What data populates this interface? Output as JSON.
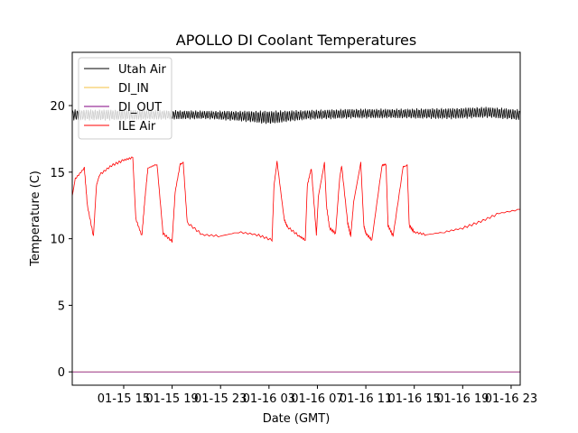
{
  "chart_data": {
    "type": "line",
    "title": "APOLLO DI Coolant Temperatures",
    "xlabel": "Date (GMT)",
    "ylabel": "Temperature (C)",
    "xlim": [
      "2024-01-15T10:45",
      "2024-01-16T23:45"
    ],
    "ylim": [
      -1,
      24
    ],
    "x_ticks": [
      {
        "label": "01-15 15",
        "t": "2024-01-15T15:00"
      },
      {
        "label": "01-15 19",
        "t": "2024-01-15T19:00"
      },
      {
        "label": "01-15 23",
        "t": "2024-01-15T23:00"
      },
      {
        "label": "01-16 03",
        "t": "2024-01-16T03:00"
      },
      {
        "label": "01-16 07",
        "t": "2024-01-16T07:00"
      },
      {
        "label": "01-16 11",
        "t": "2024-01-16T11:00"
      },
      {
        "label": "01-16 15",
        "t": "2024-01-16T15:00"
      },
      {
        "label": "01-16 19",
        "t": "2024-01-16T19:00"
      },
      {
        "label": "01-16 23",
        "t": "2024-01-16T23:00"
      }
    ],
    "y_ticks": [
      0,
      5,
      10,
      15,
      20
    ],
    "grid": false,
    "legend": "top-left",
    "series": [
      {
        "name": "Utah Air",
        "color": "#000000",
        "style": "oscillating",
        "x": [
          "2024-01-15T10:45",
          "2024-01-15T14:00",
          "2024-01-15T18:00",
          "2024-01-15T22:00",
          "2024-01-16T01:00",
          "2024-01-16T03:00",
          "2024-01-16T06:00",
          "2024-01-16T10:00",
          "2024-01-16T14:00",
          "2024-01-16T18:00",
          "2024-01-16T21:00",
          "2024-01-16T23:45"
        ],
        "y": [
          19.3,
          19.3,
          19.3,
          19.3,
          19.2,
          19.1,
          19.3,
          19.4,
          19.4,
          19.4,
          19.5,
          19.3
        ],
        "amplitude": [
          0.35,
          0.35,
          0.3,
          0.25,
          0.35,
          0.45,
          0.3,
          0.3,
          0.3,
          0.35,
          0.35,
          0.35
        ]
      },
      {
        "name": "DI_IN",
        "color": "#f5c242",
        "x": [
          "2024-01-15T10:45",
          "2024-01-16T23:45"
        ],
        "y": [
          0,
          0
        ]
      },
      {
        "name": "DI_OUT",
        "color": "#800080",
        "x": [
          "2024-01-15T10:45",
          "2024-01-16T23:45"
        ],
        "y": [
          0,
          0
        ]
      },
      {
        "name": "ILE Air",
        "color": "#ff0000",
        "x": [
          "2024-01-15T10:45",
          "2024-01-15T11:00",
          "2024-01-15T11:45",
          "2024-01-15T12:00",
          "2024-01-15T12:30",
          "2024-01-15T12:45",
          "2024-01-15T13:00",
          "2024-01-15T14:00",
          "2024-01-15T15:00",
          "2024-01-15T15:45",
          "2024-01-15T16:00",
          "2024-01-15T16:30",
          "2024-01-15T16:45",
          "2024-01-15T17:00",
          "2024-01-15T17:45",
          "2024-01-15T18:15",
          "2024-01-15T19:00",
          "2024-01-15T19:15",
          "2024-01-15T19:40",
          "2024-01-15T19:55",
          "2024-01-15T20:15",
          "2024-01-15T21:30",
          "2024-01-15T23:00",
          "2024-01-16T00:30",
          "2024-01-16T02:00",
          "2024-01-16T03:15",
          "2024-01-16T03:25",
          "2024-01-16T03:40",
          "2024-01-16T04:15",
          "2024-01-16T04:30",
          "2024-01-16T05:30",
          "2024-01-16T06:00",
          "2024-01-16T06:10",
          "2024-01-16T06:30",
          "2024-01-16T06:55",
          "2024-01-16T07:05",
          "2024-01-16T07:35",
          "2024-01-16T07:45",
          "2024-01-16T08:00",
          "2024-01-16T08:30",
          "2024-01-16T08:50",
          "2024-01-16T09:00",
          "2024-01-16T09:30",
          "2024-01-16T09:45",
          "2024-01-16T10:00",
          "2024-01-16T10:35",
          "2024-01-16T10:50",
          "2024-01-16T11:00",
          "2024-01-16T11:30",
          "2024-01-16T12:20",
          "2024-01-16T12:40",
          "2024-01-16T12:50",
          "2024-01-16T13:15",
          "2024-01-16T14:05",
          "2024-01-16T14:25",
          "2024-01-16T14:35",
          "2024-01-16T15:00",
          "2024-01-16T16:00",
          "2024-01-16T17:30",
          "2024-01-16T19:00",
          "2024-01-16T20:30",
          "2024-01-16T22:00",
          "2024-01-16T23:45"
        ],
        "y": [
          13.2,
          14.5,
          15.3,
          12.5,
          10.2,
          14.0,
          14.8,
          15.5,
          15.9,
          16.1,
          11.5,
          10.2,
          13.0,
          15.3,
          15.6,
          10.4,
          9.8,
          13.5,
          15.6,
          15.7,
          11.2,
          10.3,
          10.2,
          10.5,
          10.3,
          9.9,
          14.0,
          15.8,
          11.5,
          10.9,
          10.2,
          9.9,
          14.0,
          15.3,
          10.3,
          13.2,
          15.7,
          12.5,
          10.8,
          10.4,
          14.5,
          15.5,
          11.2,
          10.2,
          12.8,
          15.7,
          11.0,
          10.4,
          9.9,
          15.5,
          15.6,
          11.0,
          10.2,
          15.4,
          15.5,
          11.0,
          10.5,
          10.3,
          10.5,
          10.8,
          11.3,
          11.9,
          12.2
        ]
      }
    ]
  }
}
